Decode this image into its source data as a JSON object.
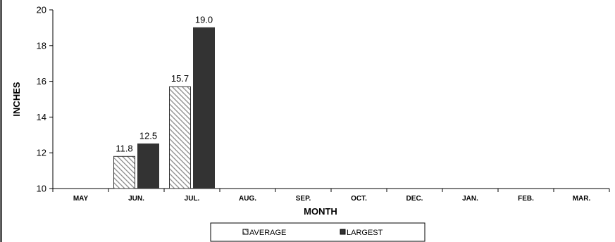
{
  "chart_data": {
    "type": "bar",
    "categories": [
      "MAY",
      "JUN.",
      "JUL.",
      "AUG.",
      "SEP.",
      "OCT.",
      "DEC.",
      "JAN.",
      "FEB.",
      "MAR."
    ],
    "series": [
      {
        "name": "AVERAGE",
        "values": [
          null,
          11.8,
          15.7,
          null,
          null,
          null,
          null,
          null,
          null,
          null
        ],
        "labels": [
          "",
          "11.8",
          "15.7",
          "",
          "",
          "",
          "",
          "",
          "",
          ""
        ]
      },
      {
        "name": "LARGEST",
        "values": [
          null,
          12.5,
          19.0,
          null,
          null,
          null,
          null,
          null,
          null,
          null
        ],
        "labels": [
          "",
          "12.5",
          "19.0",
          "",
          "",
          "",
          "",
          "",
          "",
          ""
        ]
      }
    ],
    "title": "",
    "xlabel": "MONTH",
    "ylabel": "INCHES",
    "ylim": [
      10,
      20
    ],
    "yticks": [
      "10",
      "12",
      "14",
      "16",
      "18",
      "20"
    ],
    "grid": false,
    "legend": "bottom",
    "colors": {
      "average_stroke": "#333333",
      "average_hatch": "#999999",
      "largest_fill": "#333333",
      "axis": "#000000"
    }
  }
}
